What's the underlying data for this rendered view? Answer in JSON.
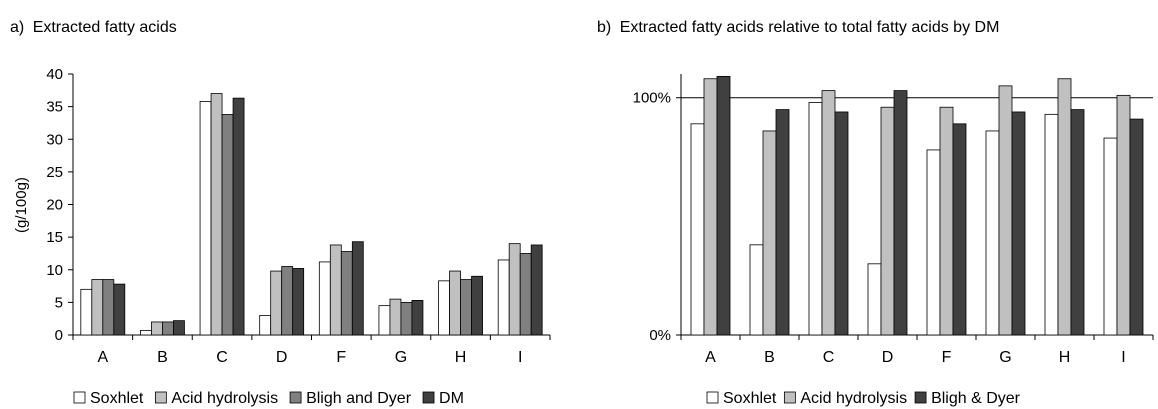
{
  "chart_data": [
    {
      "type": "bar",
      "panel_letter": "a)",
      "title": "Extracted fatty acids",
      "ylabel": "(g/100g)",
      "xlabel": "",
      "ylim": [
        0,
        40
      ],
      "yticks": [
        0,
        5,
        10,
        15,
        20,
        25,
        30,
        35,
        40
      ],
      "grid": false,
      "legend_position": "bottom",
      "categories": [
        "A",
        "B",
        "C",
        "D",
        "F",
        "G",
        "H",
        "I"
      ],
      "series": [
        {
          "name": "Soxhlet",
          "color": "#ffffff",
          "values": [
            7.0,
            0.7,
            35.8,
            3.0,
            11.2,
            4.5,
            8.3,
            11.5
          ]
        },
        {
          "name": "Acid hydrolysis",
          "color": "#c0c0c0",
          "values": [
            8.5,
            2.0,
            37.0,
            9.8,
            13.8,
            5.5,
            9.8,
            14.0
          ]
        },
        {
          "name": "Bligh and Dyer",
          "color": "#808080",
          "values": [
            8.5,
            2.0,
            33.8,
            10.5,
            12.8,
            5.0,
            8.5,
            12.5
          ]
        },
        {
          "name": "DM",
          "color": "#404040",
          "values": [
            7.8,
            2.2,
            36.3,
            10.2,
            14.3,
            5.3,
            9.0,
            13.8
          ]
        }
      ]
    },
    {
      "type": "bar",
      "panel_letter": "b)",
      "title": "Extracted fatty acids relative to total fatty acids by DM",
      "ylabel": "",
      "xlabel": "",
      "ylim": [
        0,
        110
      ],
      "yticks": [
        {
          "value": 0,
          "label": "0%"
        },
        {
          "value": 100,
          "label": "100%"
        }
      ],
      "reference_line": 100,
      "grid": false,
      "legend_position": "bottom",
      "categories": [
        "A",
        "B",
        "C",
        "D",
        "F",
        "G",
        "H",
        "I"
      ],
      "series": [
        {
          "name": "Soxhlet",
          "color": "#ffffff",
          "values": [
            89,
            38,
            98,
            30,
            78,
            86,
            93,
            83
          ]
        },
        {
          "name": "Acid hydrolysis",
          "color": "#c0c0c0",
          "values": [
            108,
            86,
            103,
            96,
            96,
            105,
            108,
            101
          ]
        },
        {
          "name": "Bligh & Dyer",
          "color": "#404040",
          "values": [
            109,
            95,
            94,
            103,
            89,
            94,
            95,
            91
          ]
        }
      ]
    }
  ]
}
